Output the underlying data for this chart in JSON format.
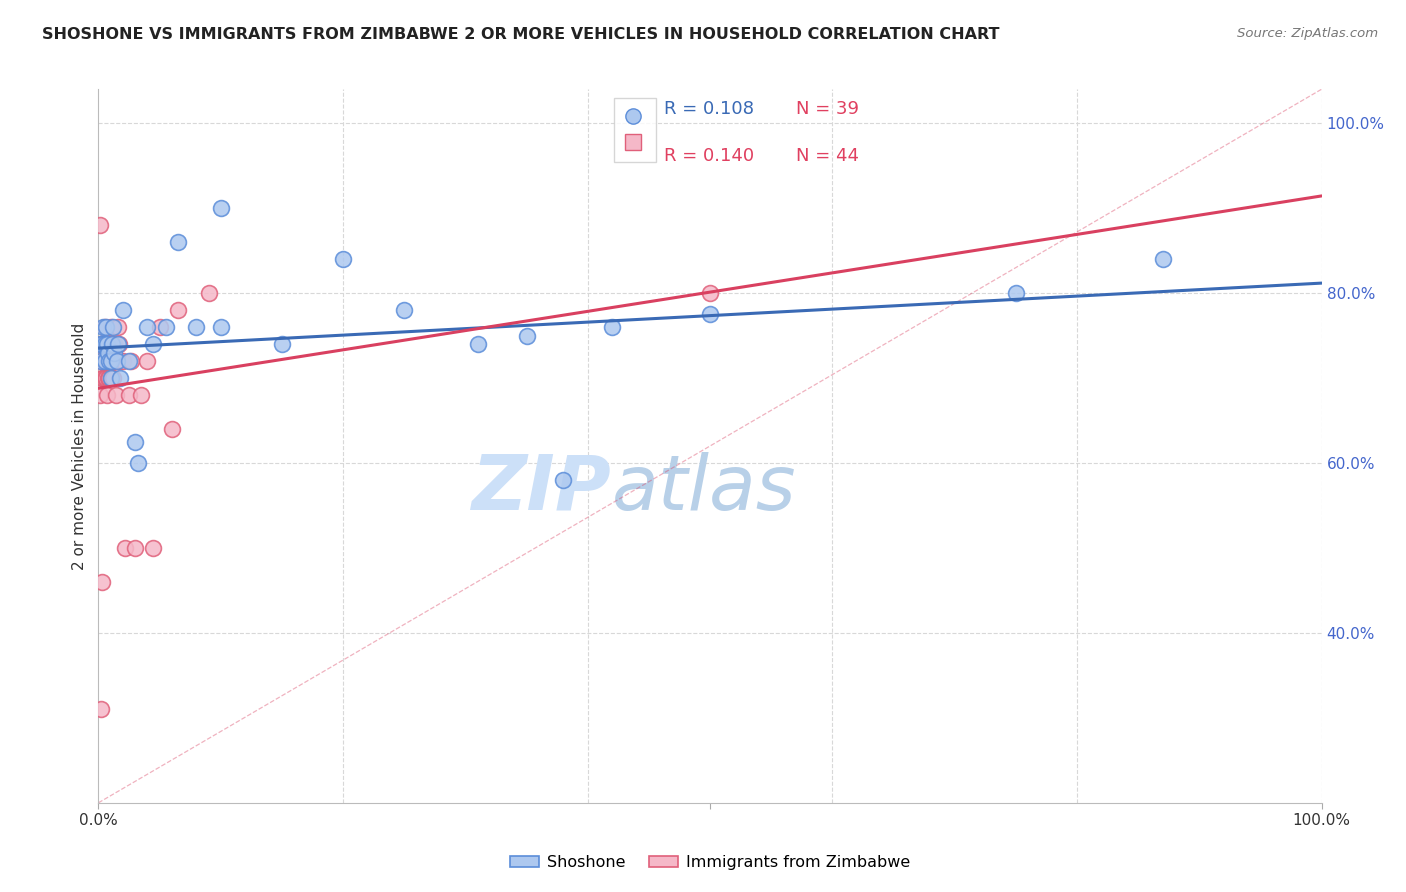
{
  "title": "SHOSHONE VS IMMIGRANTS FROM ZIMBABWE 2 OR MORE VEHICLES IN HOUSEHOLD CORRELATION CHART",
  "source": "Source: ZipAtlas.com",
  "ylabel": "2 or more Vehicles in Household",
  "blue_color": "#adc8ef",
  "pink_color": "#f5b8c8",
  "blue_edge_color": "#5b8dd9",
  "pink_edge_color": "#e0607a",
  "blue_line_color": "#3a6ab5",
  "pink_line_color": "#d94060",
  "blue_r_color": "#3a6ab5",
  "blue_n_color": "#e04060",
  "pink_r_color": "#e04060",
  "pink_n_color": "#e04060",
  "grid_color": "#d8d8d8",
  "watermark_color": "#cce0f8",
  "background_color": "#ffffff",
  "shoshone_x": [
    0.001,
    0.002,
    0.003,
    0.004,
    0.005,
    0.005,
    0.006,
    0.007,
    0.008,
    0.009,
    0.01,
    0.01,
    0.011,
    0.012,
    0.013,
    0.015,
    0.016,
    0.018,
    0.02,
    0.025,
    0.03,
    0.032,
    0.04,
    0.045,
    0.055,
    0.065,
    0.08,
    0.1,
    0.15,
    0.2,
    0.25,
    0.31,
    0.35,
    0.38,
    0.42,
    0.5,
    0.75,
    0.87,
    0.1
  ],
  "shoshone_y": [
    0.74,
    0.72,
    0.74,
    0.76,
    0.72,
    0.74,
    0.76,
    0.74,
    0.73,
    0.72,
    0.72,
    0.7,
    0.74,
    0.76,
    0.73,
    0.72,
    0.74,
    0.7,
    0.78,
    0.72,
    0.625,
    0.6,
    0.76,
    0.74,
    0.76,
    0.86,
    0.76,
    0.9,
    0.74,
    0.84,
    0.78,
    0.74,
    0.75,
    0.58,
    0.76,
    0.775,
    0.8,
    0.84,
    0.76
  ],
  "zimbabwe_x": [
    0.001,
    0.001,
    0.002,
    0.002,
    0.003,
    0.003,
    0.004,
    0.004,
    0.005,
    0.005,
    0.005,
    0.006,
    0.006,
    0.007,
    0.007,
    0.008,
    0.008,
    0.009,
    0.009,
    0.01,
    0.01,
    0.011,
    0.012,
    0.013,
    0.014,
    0.015,
    0.016,
    0.017,
    0.018,
    0.02,
    0.022,
    0.025,
    0.027,
    0.03,
    0.035,
    0.04,
    0.045,
    0.05,
    0.06,
    0.065,
    0.002,
    0.003,
    0.5,
    0.09
  ],
  "zimbabwe_y": [
    0.88,
    0.68,
    0.72,
    0.74,
    0.74,
    0.7,
    0.72,
    0.7,
    0.76,
    0.72,
    0.7,
    0.72,
    0.7,
    0.72,
    0.68,
    0.72,
    0.7,
    0.74,
    0.7,
    0.76,
    0.7,
    0.72,
    0.7,
    0.74,
    0.68,
    0.72,
    0.76,
    0.74,
    0.72,
    0.72,
    0.5,
    0.68,
    0.72,
    0.5,
    0.68,
    0.72,
    0.5,
    0.76,
    0.64,
    0.78,
    0.31,
    0.46,
    0.8,
    0.8
  ],
  "xlim": [
    0.0,
    1.0
  ],
  "ylim": [
    0.2,
    1.04
  ],
  "yticks_right": [
    0.4,
    0.6,
    0.8,
    1.0
  ],
  "ytick_labels_right": [
    "40.0%",
    "60.0%",
    "80.0%",
    "100.0%"
  ],
  "xticks": [
    0.0,
    0.2,
    0.4,
    0.6,
    0.8,
    1.0
  ],
  "xtick_labels": [
    "0.0%",
    "",
    "",
    "",
    "",
    "100.0%"
  ]
}
